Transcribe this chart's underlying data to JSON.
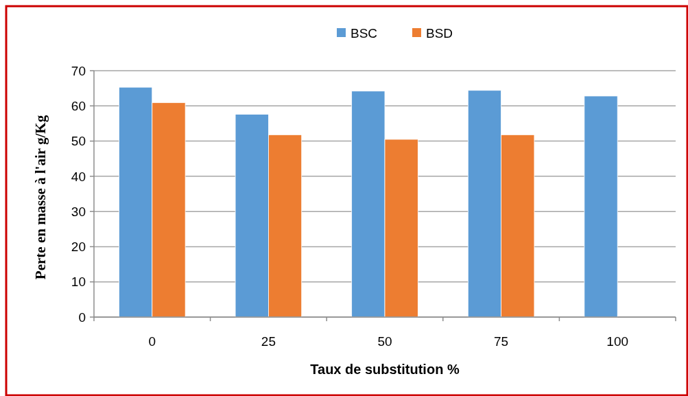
{
  "chart_data": {
    "type": "bar",
    "xlabel": "Taux de substitution  %",
    "ylabel": "Perte en masse à l'air  g/Kg",
    "categories": [
      "0",
      "25",
      "50",
      "75",
      "100"
    ],
    "series": [
      {
        "name": "BSC",
        "color": "#5b9bd5",
        "values": [
          65.3,
          57.6,
          64.2,
          64.4,
          62.8
        ]
      },
      {
        "name": "BSD",
        "color": "#ed7d31",
        "values": [
          60.9,
          51.8,
          50.5,
          51.8,
          null
        ]
      }
    ],
    "ylim": [
      0,
      70
    ],
    "yticks": [
      0,
      10,
      20,
      30,
      40,
      50,
      60,
      70
    ],
    "grid": "y",
    "legend": "top"
  }
}
